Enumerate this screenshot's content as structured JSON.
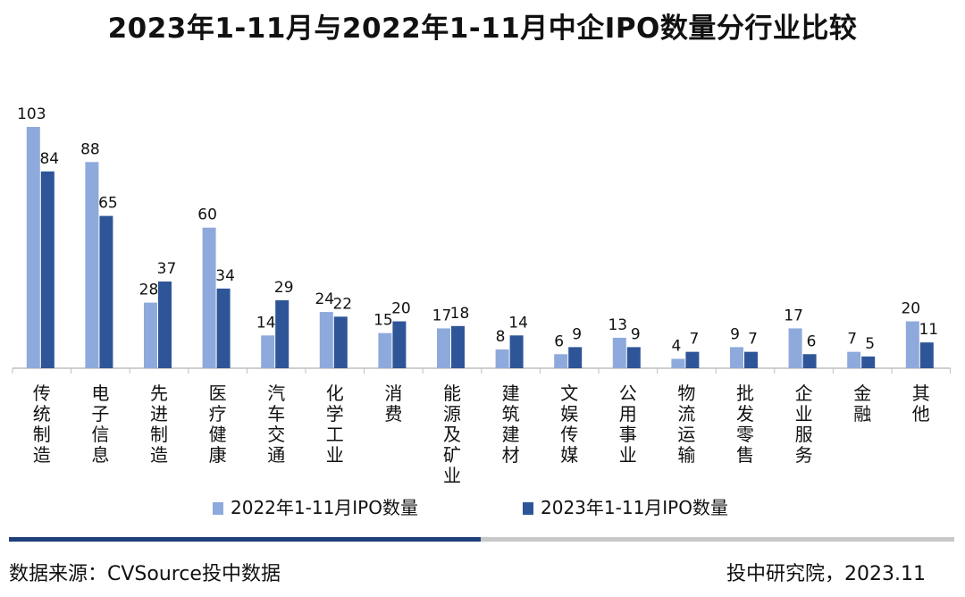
{
  "chart_data": {
    "type": "bar",
    "title": "2023年1-11月与2022年1-11月中企IPO数量分行业比较",
    "categories": [
      "传统制造",
      "电子信息",
      "先进制造",
      "医疗健康",
      "汽车交通",
      "化学工业",
      "消费",
      "能源及矿业",
      "建筑建材",
      "文娱传媒",
      "公用事业",
      "物流运输",
      "批发零售",
      "企业服务",
      "金融",
      "其他"
    ],
    "series": [
      {
        "name": "2022年1-11月IPO数量",
        "color": "#8eaadc",
        "values": [
          103,
          88,
          28,
          60,
          14,
          24,
          15,
          17,
          8,
          6,
          13,
          4,
          9,
          17,
          7,
          20
        ]
      },
      {
        "name": "2023年1-11月IPO数量",
        "color": "#2e5597",
        "values": [
          84,
          65,
          37,
          34,
          29,
          22,
          20,
          18,
          14,
          9,
          9,
          7,
          7,
          6,
          5,
          11
        ]
      }
    ],
    "ylim": [
      0,
      103
    ],
    "xlabel": "",
    "ylabel": "",
    "grid": false,
    "legend": "bottom"
  },
  "footer": {
    "source": "数据来源：CVSource投中数据",
    "credit": "投中研究院，2023.11"
  }
}
